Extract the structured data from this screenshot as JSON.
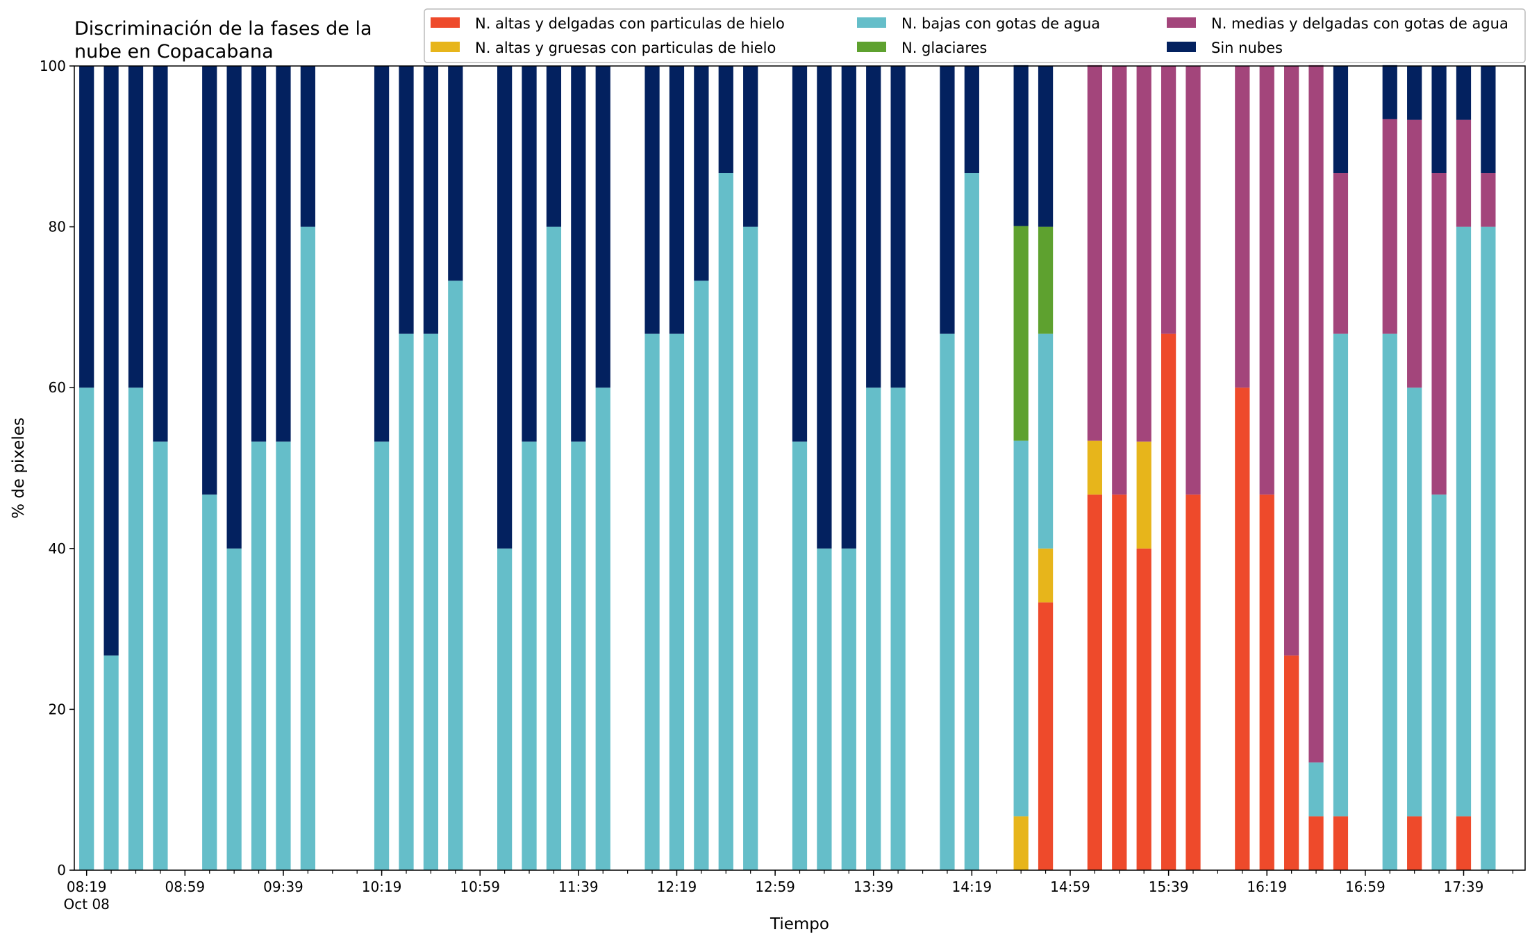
{
  "chart_data": {
    "type": "bar",
    "stacked": true,
    "title": [
      "Discriminación de la fases de la",
      "nube en Copacabana"
    ],
    "xlabel": "Tiempo",
    "ylabel": "% de pixeles",
    "ylim": [
      0,
      100
    ],
    "yticks": [
      0,
      20,
      40,
      60,
      80,
      100
    ],
    "xlim": [
      "08:14",
      "18:04"
    ],
    "x_tick_labels": [
      "08:19",
      "08:59",
      "09:39",
      "10:19",
      "10:59",
      "11:39",
      "12:19",
      "12:59",
      "13:39",
      "14:19",
      "14:59",
      "15:39",
      "16:19",
      "16:59",
      "17:39"
    ],
    "x_date_label": "Oct 08",
    "legend_position": "top-right",
    "legend": {
      "columns": [
        [
          "N. altas y delgadas con particulas de hielo",
          "N. altas y gruesas con particulas de hielo"
        ],
        [
          "N. bajas con gotas de agua",
          "N. glaciares"
        ],
        [
          "N. medias y delgadas con gotas de agua",
          "Sin nubes"
        ]
      ]
    },
    "x": [
      "08:19",
      "08:29",
      "08:39",
      "08:49",
      "09:09",
      "09:19",
      "09:29",
      "09:39",
      "09:49",
      "10:19",
      "10:29",
      "10:39",
      "10:49",
      "11:09",
      "11:19",
      "11:29",
      "11:39",
      "11:49",
      "12:09",
      "12:19",
      "12:29",
      "12:39",
      "12:49",
      "13:09",
      "13:19",
      "13:29",
      "13:39",
      "13:49",
      "14:09",
      "14:19",
      "14:39",
      "14:49",
      "15:09",
      "15:19",
      "15:29",
      "15:39",
      "15:49",
      "16:09",
      "16:19",
      "16:29",
      "16:39",
      "16:49",
      "17:09",
      "17:19",
      "17:29",
      "17:39",
      "17:49"
    ],
    "series": [
      {
        "name": "N. altas y delgadas con particulas de hielo",
        "color": "#ee4a2b",
        "values": [
          0,
          0,
          0,
          0,
          0,
          0,
          0,
          0,
          0,
          0,
          0,
          0,
          0,
          0,
          0,
          0,
          0,
          0,
          0,
          0,
          0,
          0,
          0,
          0,
          0,
          0,
          0,
          0,
          0,
          0,
          0,
          33.3,
          46.7,
          46.7,
          40,
          66.7,
          46.7,
          60,
          46.7,
          26.7,
          6.7,
          6.7,
          0,
          6.7,
          0,
          6.7,
          0
        ]
      },
      {
        "name": "N. altas y gruesas con particulas de hielo",
        "color": "#e7b51b",
        "values": [
          0,
          0,
          0,
          0,
          0,
          0,
          0,
          0,
          0,
          0,
          0,
          0,
          0,
          0,
          0,
          0,
          0,
          0,
          0,
          0,
          0,
          0,
          0,
          0,
          0,
          0,
          0,
          0,
          0,
          0,
          6.7,
          6.7,
          6.7,
          0,
          13.3,
          0,
          0,
          0,
          0,
          0,
          0,
          0,
          0,
          0,
          0,
          0,
          0
        ]
      },
      {
        "name": "N. bajas con gotas de agua",
        "color": "#65bec9",
        "values": [
          60,
          26.7,
          60,
          53.3,
          46.7,
          40,
          53.3,
          53.3,
          80,
          53.3,
          66.7,
          66.7,
          73.3,
          40,
          53.3,
          80,
          53.3,
          60,
          66.7,
          66.7,
          73.3,
          86.7,
          80,
          53.3,
          40,
          40,
          60,
          60,
          66.7,
          86.7,
          46.7,
          26.7,
          0,
          0,
          0,
          0,
          0,
          0,
          0,
          0,
          6.7,
          60,
          66.7,
          53.3,
          46.7,
          73.3,
          80
        ]
      },
      {
        "name": "N. glaciares",
        "color": "#5ea12f",
        "values": [
          0,
          0,
          0,
          0,
          0,
          0,
          0,
          0,
          0,
          0,
          0,
          0,
          0,
          0,
          0,
          0,
          0,
          0,
          0,
          0,
          0,
          0,
          0,
          0,
          0,
          0,
          0,
          0,
          0,
          0,
          26.7,
          13.3,
          0,
          0,
          0,
          0,
          0,
          0,
          0,
          0,
          0,
          0,
          0,
          0,
          0,
          0,
          0
        ]
      },
      {
        "name": "N. medias y delgadas con gotas de agua",
        "color": "#a3457b",
        "values": [
          0,
          0,
          0,
          0,
          0,
          0,
          0,
          0,
          0,
          0,
          0,
          0,
          0,
          0,
          0,
          0,
          0,
          0,
          0,
          0,
          0,
          0,
          0,
          0,
          0,
          0,
          0,
          0,
          0,
          0,
          0,
          0,
          46.7,
          53.3,
          46.7,
          33.3,
          53.3,
          40,
          53.3,
          73.3,
          86.7,
          20,
          26.7,
          33.3,
          40,
          13.3,
          6.7
        ]
      },
      {
        "name": "Sin nubes",
        "color": "#03215f",
        "values": [
          40,
          73.3,
          40,
          46.7,
          53.3,
          60,
          46.7,
          46.7,
          20,
          46.7,
          33.3,
          33.3,
          26.7,
          60,
          46.7,
          20,
          46.7,
          40,
          33.3,
          33.3,
          26.7,
          13.3,
          20,
          46.7,
          60,
          60,
          40,
          40,
          33.3,
          13.3,
          20,
          20,
          0,
          0,
          0,
          0,
          0,
          0,
          0,
          0,
          0,
          13.3,
          6.7,
          6.7,
          13.3,
          6.7,
          13.3
        ]
      }
    ]
  }
}
